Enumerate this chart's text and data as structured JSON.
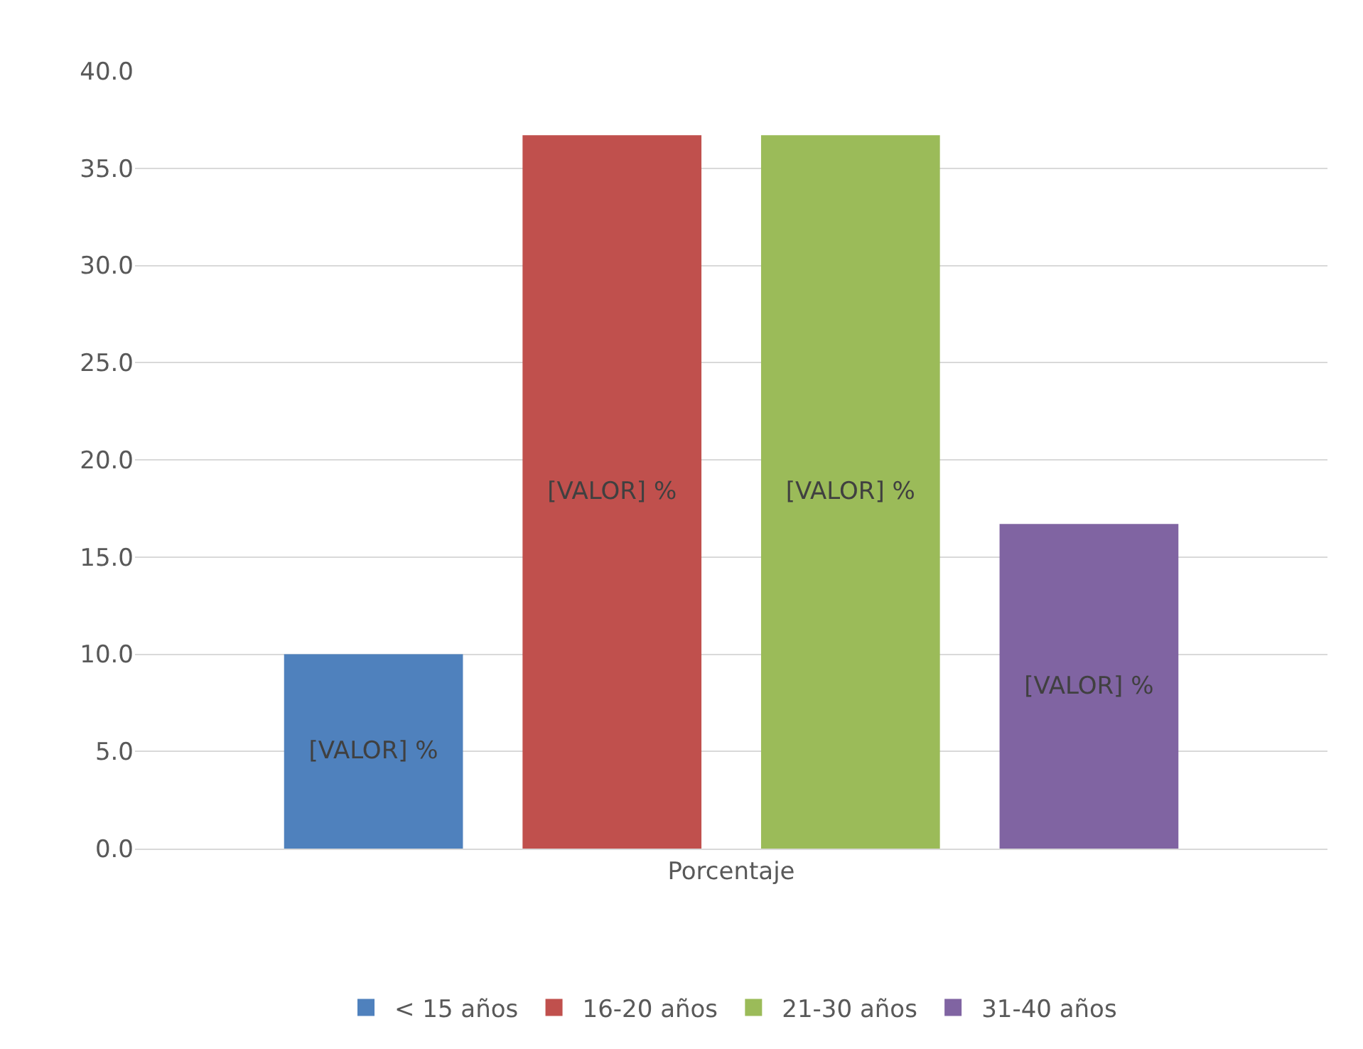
{
  "chart_data": {
    "type": "bar",
    "categories": [
      "Porcentaje"
    ],
    "series": [
      {
        "name": "< 15 años",
        "color": "#4f81bd",
        "values": [
          10.0
        ],
        "value_labels": [
          "[VALOR] %"
        ]
      },
      {
        "name": "16-20 años",
        "color": "#c0504d",
        "values": [
          36.7
        ],
        "value_labels": [
          "[VALOR] %"
        ]
      },
      {
        "name": "21-30 años",
        "color": "#9bbb59",
        "values": [
          36.7
        ],
        "value_labels": [
          "[VALOR] %"
        ]
      },
      {
        "name": "31-40 años",
        "color": "#8064a2",
        "values": [
          16.7
        ],
        "value_labels": [
          "[VALOR] %"
        ]
      }
    ],
    "ylim": [
      0,
      40
    ],
    "yticks": [
      {
        "value": 0,
        "label": "0.0"
      },
      {
        "value": 5,
        "label": "5.0"
      },
      {
        "value": 10,
        "label": "10.0"
      },
      {
        "value": 15,
        "label": "15.0"
      },
      {
        "value": 20,
        "label": "20.0"
      },
      {
        "value": 25,
        "label": "25.0"
      },
      {
        "value": 30,
        "label": "30.0"
      },
      {
        "value": 35,
        "label": "35.0"
      },
      {
        "value": 40,
        "label": "40.0"
      }
    ],
    "grid": "y",
    "legend": "bottom"
  }
}
